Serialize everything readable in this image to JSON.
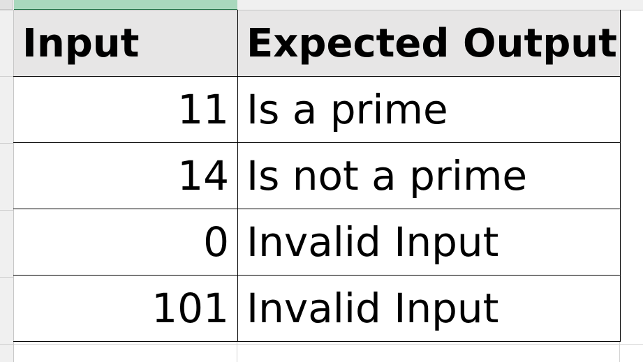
{
  "sheet": {
    "headers": {
      "input": "Input",
      "expected_output": "Expected Output"
    },
    "rows": [
      {
        "input": "11",
        "expected_output": "Is a prime"
      },
      {
        "input": "14",
        "expected_output": "Is not a prime"
      },
      {
        "input": "0",
        "expected_output": "Invalid Input"
      },
      {
        "input": "101",
        "expected_output": "Invalid Input"
      }
    ]
  },
  "colors": {
    "header_fill": "#e7e6e6",
    "selected_column_header": "#a9d8bd",
    "border": "#000000"
  }
}
